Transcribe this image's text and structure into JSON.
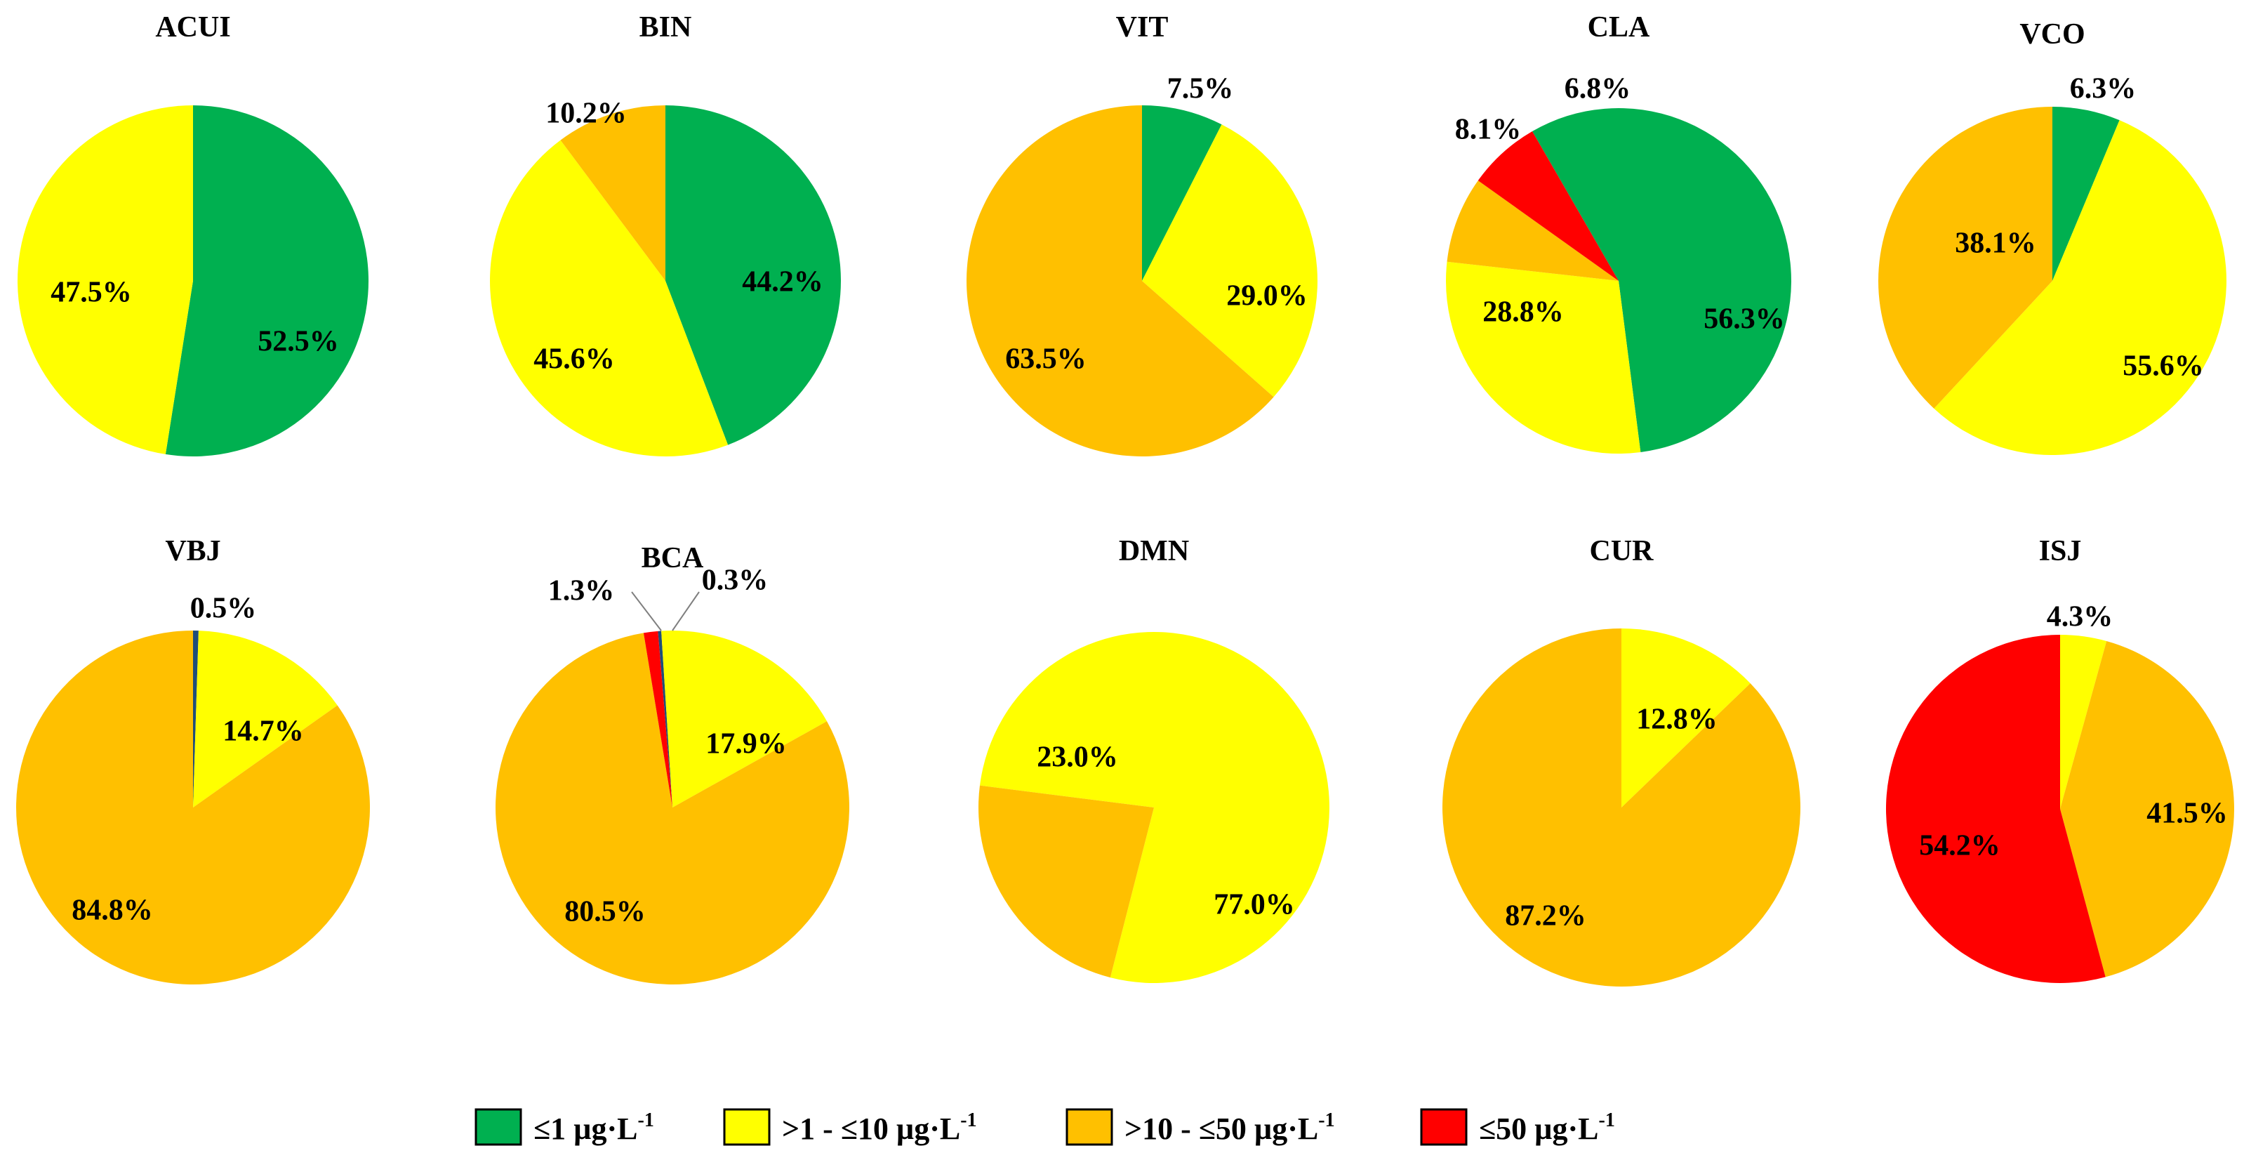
{
  "legend": {
    "categories": [
      {
        "key": "le1",
        "color": "#00B050",
        "text": "≤1 µg·L",
        "sup": "-1"
      },
      {
        "key": "gt1le10",
        "color": "#FFFF00",
        "text": ">1 - ≤10 µg·L",
        "sup": "-1"
      },
      {
        "key": "gt10le50",
        "color": "#FFC000",
        "text": ">10 - ≤50 µg·L",
        "sup": "-1"
      },
      {
        "key": "le50",
        "color": "#FF0000",
        "text": "≤50 µg·L",
        "sup": "-1"
      }
    ],
    "extra_colors": {
      "dark": "#1F4E79"
    }
  },
  "chart_data": [
    {
      "type": "pie",
      "title": "ACUI",
      "slices": [
        {
          "category": "le1",
          "value": 52.5,
          "label": "52.5%"
        },
        {
          "category": "gt1le10",
          "value": 47.5,
          "label": "47.5%"
        }
      ]
    },
    {
      "type": "pie",
      "title": "BIN",
      "slices": [
        {
          "category": "le1",
          "value": 44.2,
          "label": "44.2%"
        },
        {
          "category": "gt1le10",
          "value": 45.6,
          "label": "45.6%"
        },
        {
          "category": "gt10le50",
          "value": 10.2,
          "label": "10.2%"
        }
      ]
    },
    {
      "type": "pie",
      "title": "VIT",
      "slices": [
        {
          "category": "le1",
          "value": 7.5,
          "label": "7.5%"
        },
        {
          "category": "gt1le10",
          "value": 29.0,
          "label": "29.0%"
        },
        {
          "category": "gt10le50",
          "value": 63.5,
          "label": "63.5%"
        }
      ]
    },
    {
      "type": "pie",
      "title": "CLA",
      "slices": [
        {
          "category": "le1",
          "value": 56.3,
          "label": "56.3%"
        },
        {
          "category": "gt1le10",
          "value": 28.8,
          "label": "28.8%"
        },
        {
          "category": "gt10le50",
          "value": 8.1,
          "label": "8.1%"
        },
        {
          "category": "le50",
          "value": 6.8,
          "label": "6.8%"
        }
      ]
    },
    {
      "type": "pie",
      "title": "VCO",
      "slices": [
        {
          "category": "le1",
          "value": 6.3,
          "label": "6.3%"
        },
        {
          "category": "gt1le10",
          "value": 55.6,
          "label": "55.6%"
        },
        {
          "category": "gt10le50",
          "value": 38.1,
          "label": "38.1%"
        }
      ]
    },
    {
      "type": "pie",
      "title": "VBJ",
      "slices": [
        {
          "category": "dark",
          "value": 0.5,
          "label": "0.5%"
        },
        {
          "category": "gt1le10",
          "value": 14.7,
          "label": "14.7%"
        },
        {
          "category": "gt10le50",
          "value": 84.8,
          "label": "84.8%"
        }
      ]
    },
    {
      "type": "pie",
      "title": "BCA",
      "slices": [
        {
          "category": "dark",
          "value": 0.3,
          "label": "0.3%"
        },
        {
          "category": "gt1le10",
          "value": 17.9,
          "label": "17.9%"
        },
        {
          "category": "gt10le50",
          "value": 80.5,
          "label": "80.5%"
        },
        {
          "category": "le50",
          "value": 1.3,
          "label": "1.3%"
        }
      ]
    },
    {
      "type": "pie",
      "title": "DMN",
      "slices": [
        {
          "category": "gt1le10",
          "value": 77.0,
          "label": "77.0%"
        },
        {
          "category": "gt10le50",
          "value": 23.0,
          "label": "23.0%"
        }
      ]
    },
    {
      "type": "pie",
      "title": "CUR",
      "slices": [
        {
          "category": "gt1le10",
          "value": 12.8,
          "label": "12.8%"
        },
        {
          "category": "gt10le50",
          "value": 87.2,
          "label": "87.2%"
        }
      ]
    },
    {
      "type": "pie",
      "title": "ISJ",
      "slices": [
        {
          "category": "gt1le10",
          "value": 4.3,
          "label": "4.3%"
        },
        {
          "category": "gt10le50",
          "value": 41.5,
          "label": "41.5%"
        },
        {
          "category": "le50",
          "value": 54.2,
          "label": "54.2%"
        }
      ]
    }
  ]
}
